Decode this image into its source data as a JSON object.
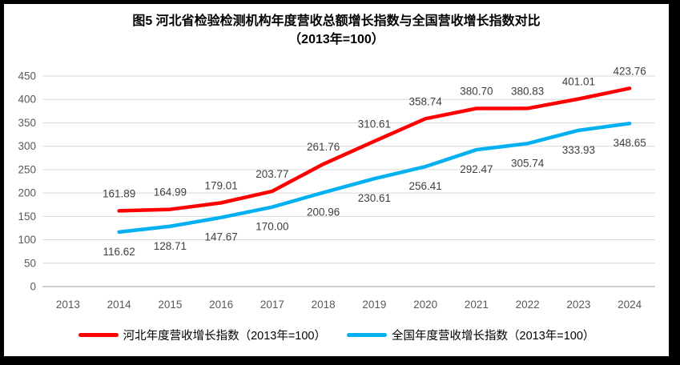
{
  "figure": {
    "title": "图5  河北省检验检测机构年度营收总额增长指数与全国营收增长指数对比",
    "subtitle": "（2013年=100）"
  },
  "chart_data": {
    "type": "line",
    "title": "图5  河北省检验检测机构年度营收总额增长指数与全国营收增长指数对比（2013年=100）",
    "categories": [
      "2013",
      "2014",
      "2015",
      "2016",
      "2017",
      "2018",
      "2019",
      "2020",
      "2021",
      "2022",
      "2023",
      "2024"
    ],
    "series": [
      {
        "name": "河北年度营收增长指数（2013年=100）",
        "color": "#FF0000",
        "label_position": "above",
        "values": [
          null,
          161.89,
          164.99,
          179.01,
          203.77,
          261.76,
          310.61,
          358.74,
          380.7,
          380.83,
          401.01,
          423.76
        ]
      },
      {
        "name": "全国年度营收增长指数（2013年=100）",
        "color": "#00B0F0",
        "label_position": "below",
        "values": [
          null,
          116.62,
          128.71,
          147.67,
          170.0,
          200.96,
          230.61,
          256.41,
          292.47,
          305.74,
          333.93,
          348.65
        ]
      }
    ],
    "ylim": [
      0,
      450
    ],
    "ytick_step": 50,
    "grid": true,
    "legend_position": "bottom",
    "data_labels": true,
    "data_label_decimals": 2,
    "colors": {
      "gridline": "#D9D9D9",
      "axis_line": "#BFBFBF",
      "axis_text": "#595959",
      "data_label_text": "#3F3F3F",
      "title_text": "#000000",
      "frame_border": "#000000"
    }
  }
}
